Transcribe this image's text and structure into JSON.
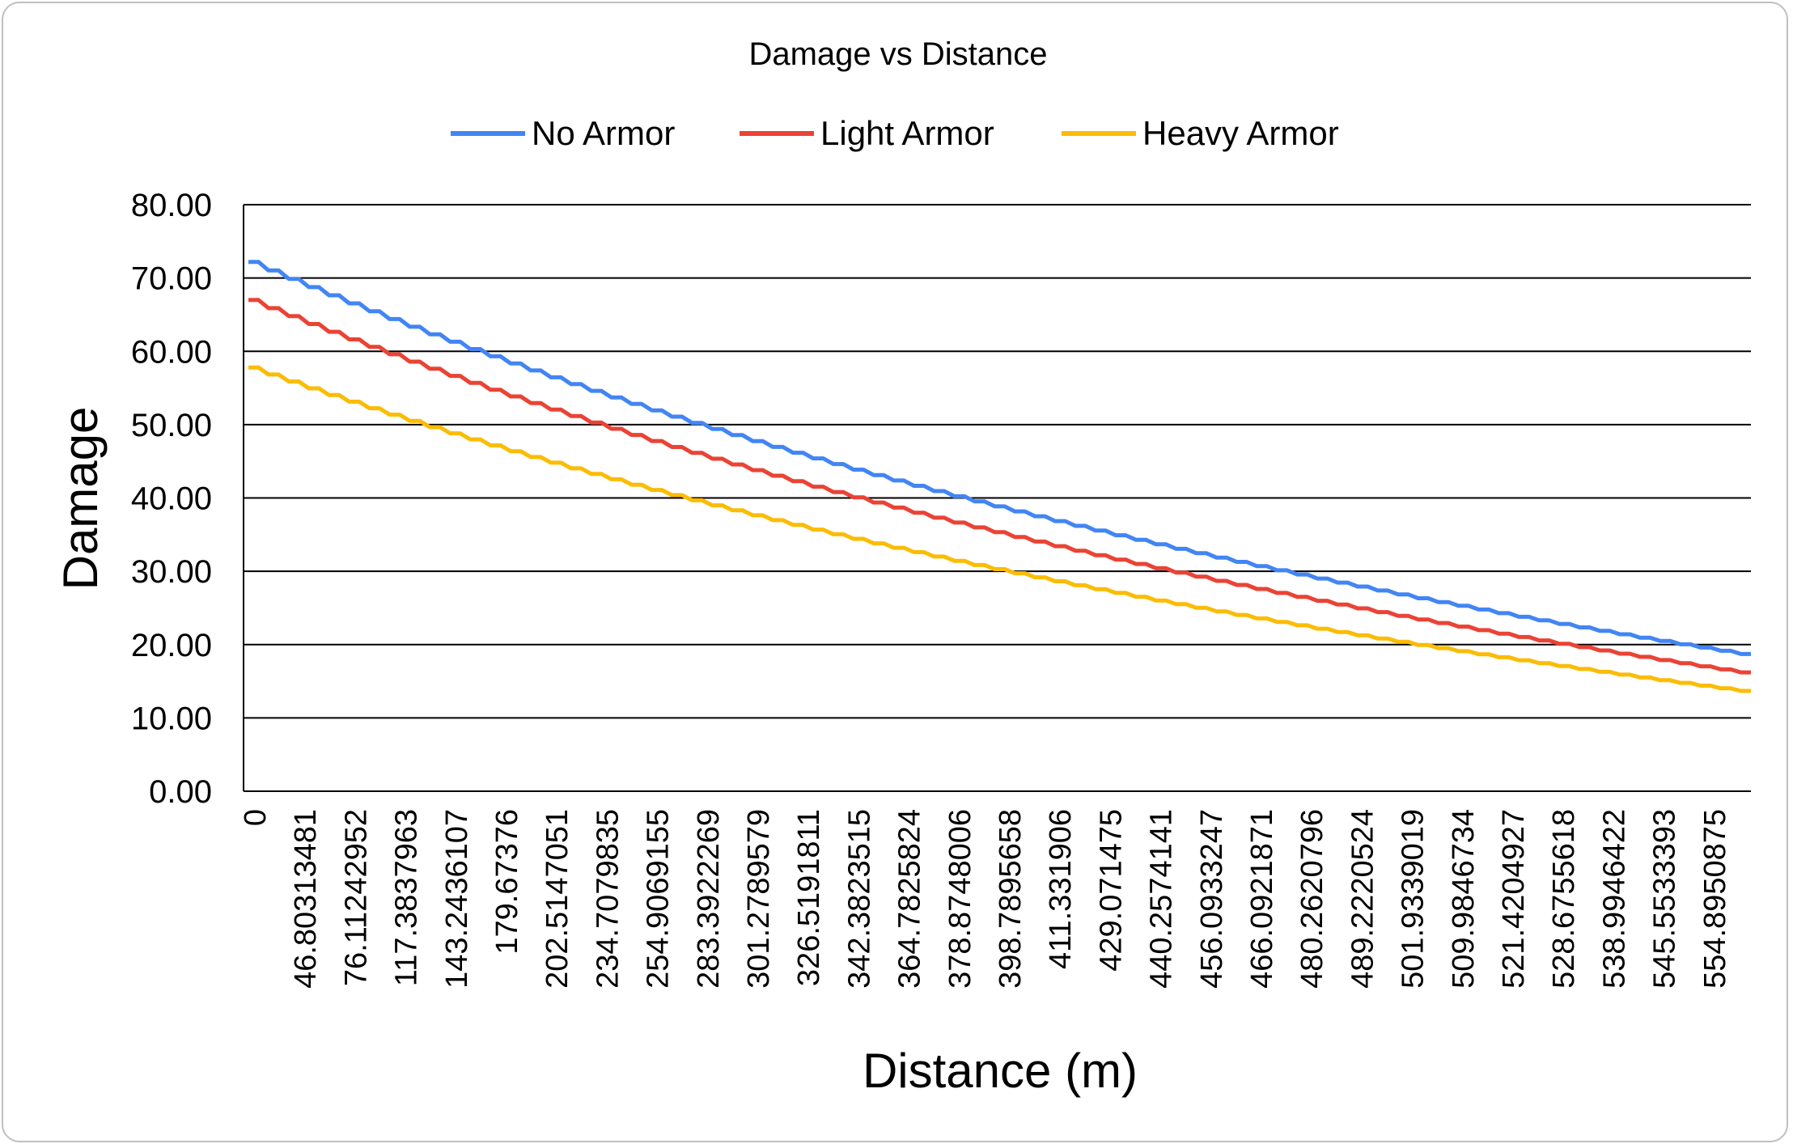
{
  "chart_data": {
    "type": "line",
    "title": "Damage vs Distance",
    "xlabel": "Distance (m)",
    "ylabel": "Damage",
    "ylim": [
      0,
      80
    ],
    "y_ticks": [
      "0.00",
      "10.00",
      "20.00",
      "30.00",
      "40.00",
      "50.00",
      "60.00",
      "70.00",
      "80.00"
    ],
    "x_tick_labels": [
      "0",
      "46.80313481",
      "76.11242952",
      "117.3837963",
      "143.2436107",
      "179.67376",
      "202.5147051",
      "234.7079835",
      "254.9069155",
      "283.3922269",
      "301.2789579",
      "326.5191811",
      "342.3823515",
      "364.7825824",
      "378.8748006",
      "398.7895658",
      "411.331906",
      "429.071475",
      "440.2574141",
      "456.0933247",
      "466.0921871",
      "480.2620796",
      "489.2220524",
      "501.9339019",
      "509.9846734",
      "521.4204927",
      "528.6755618",
      "538.9946422",
      "545.5533393",
      "554.8950875"
    ],
    "grid": true,
    "legend_position": "top",
    "points_per_series": 150,
    "series": [
      {
        "name": "No Armor",
        "color": "#4285f4",
        "start": 72.2,
        "end": 18.5
      },
      {
        "name": "Light Armor",
        "color": "#ea4335",
        "start": 67.0,
        "end": 16.0
      },
      {
        "name": "Heavy Armor",
        "color": "#fbbc04",
        "start": 57.8,
        "end": 13.5
      }
    ]
  }
}
